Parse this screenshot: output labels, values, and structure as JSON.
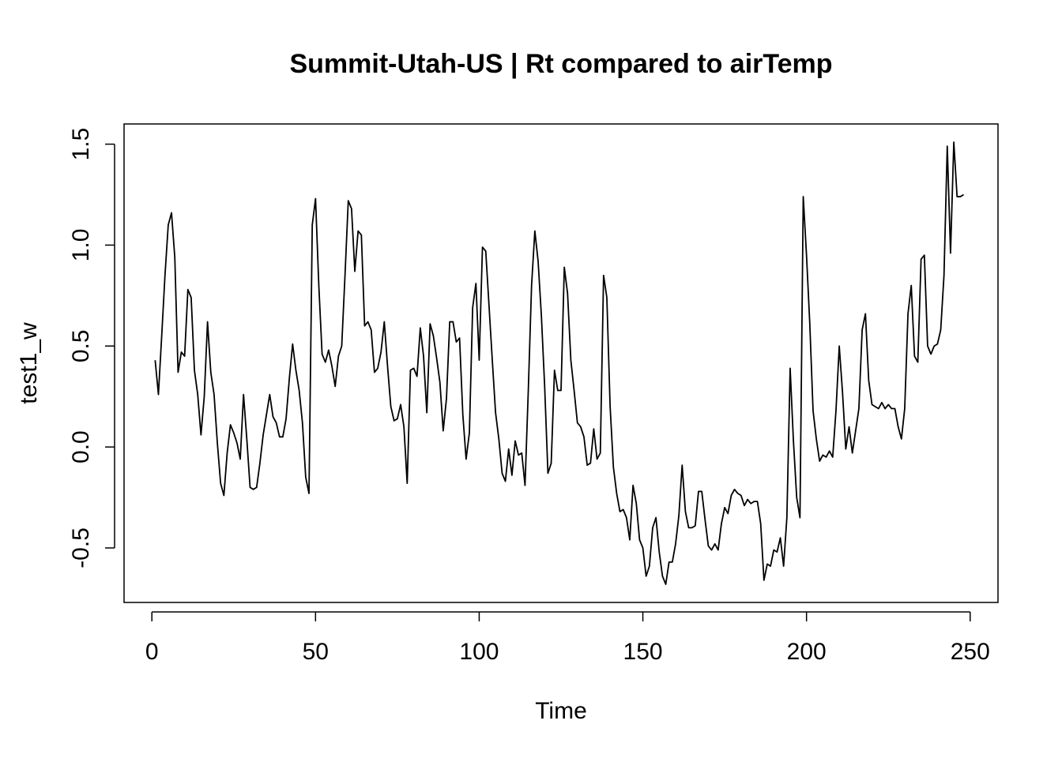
{
  "chart_data": {
    "type": "line",
    "title": "Summit-Utah-US | Rt compared to airTemp",
    "xlabel": "Time",
    "ylabel": "test1_w",
    "xlim": [
      -8.5,
      258.5
    ],
    "ylim": [
      -0.77,
      1.6
    ],
    "x_ticks": [
      0,
      50,
      100,
      150,
      200,
      250
    ],
    "x_tick_labels": [
      "0",
      "50",
      "100",
      "150",
      "200",
      "250"
    ],
    "y_ticks": [
      -0.5,
      0.0,
      0.5,
      1.0,
      1.5
    ],
    "y_tick_labels": [
      "-0.5",
      "0.0",
      "0.5",
      "1.0",
      "1.5"
    ],
    "grid": false,
    "line_color": "#000000",
    "series": [
      {
        "x_start": 1,
        "values": [
          0.43,
          0.26,
          0.55,
          0.85,
          1.1,
          1.16,
          0.94,
          0.37,
          0.47,
          0.45,
          0.78,
          0.74,
          0.38,
          0.26,
          0.06,
          0.25,
          0.62,
          0.37,
          0.26,
          0.02,
          -0.18,
          -0.24,
          -0.03,
          0.11,
          0.07,
          0.02,
          -0.06,
          0.26,
          0.04,
          -0.2,
          -0.21,
          -0.2,
          -0.08,
          0.06,
          0.16,
          0.26,
          0.15,
          0.12,
          0.05,
          0.05,
          0.14,
          0.34,
          0.51,
          0.38,
          0.28,
          0.12,
          -0.15,
          -0.23,
          1.1,
          1.23,
          0.8,
          0.46,
          0.42,
          0.48,
          0.4,
          0.3,
          0.45,
          0.5,
          0.85,
          1.22,
          1.18,
          0.87,
          1.07,
          1.05,
          0.6,
          0.62,
          0.58,
          0.37,
          0.39,
          0.47,
          0.62,
          0.4,
          0.2,
          0.13,
          0.14,
          0.21,
          0.1,
          -0.18,
          0.38,
          0.39,
          0.35,
          0.59,
          0.45,
          0.17,
          0.61,
          0.55,
          0.44,
          0.32,
          0.08,
          0.24,
          0.62,
          0.62,
          0.52,
          0.54,
          0.16,
          -0.06,
          0.07,
          0.69,
          0.81,
          0.43,
          0.99,
          0.97,
          0.7,
          0.43,
          0.17,
          0.04,
          -0.13,
          -0.17,
          -0.01,
          -0.14,
          0.03,
          -0.04,
          -0.03,
          -0.19,
          0.28,
          0.8,
          1.07,
          0.92,
          0.65,
          0.3,
          -0.13,
          -0.08,
          0.38,
          0.28,
          0.28,
          0.89,
          0.76,
          0.43,
          0.28,
          0.12,
          0.1,
          0.05,
          -0.09,
          -0.08,
          0.09,
          -0.06,
          -0.03,
          0.85,
          0.74,
          0.2,
          -0.1,
          -0.23,
          -0.32,
          -0.31,
          -0.35,
          -0.46,
          -0.19,
          -0.28,
          -0.46,
          -0.5,
          -0.64,
          -0.59,
          -0.4,
          -0.35,
          -0.52,
          -0.64,
          -0.68,
          -0.57,
          -0.57,
          -0.48,
          -0.34,
          -0.09,
          -0.32,
          -0.4,
          -0.4,
          -0.39,
          -0.22,
          -0.22,
          -0.36,
          -0.49,
          -0.51,
          -0.48,
          -0.51,
          -0.38,
          -0.3,
          -0.33,
          -0.24,
          -0.21,
          -0.23,
          -0.24,
          -0.29,
          -0.26,
          -0.28,
          -0.27,
          -0.27,
          -0.38,
          -0.66,
          -0.58,
          -0.59,
          -0.51,
          -0.52,
          -0.45,
          -0.59,
          -0.35,
          0.39,
          0.03,
          -0.25,
          -0.35,
          1.24,
          0.95,
          0.61,
          0.18,
          0.04,
          -0.07,
          -0.04,
          -0.05,
          -0.02,
          -0.05,
          0.18,
          0.5,
          0.27,
          -0.01,
          0.1,
          -0.03,
          0.08,
          0.19,
          0.58,
          0.66,
          0.33,
          0.21,
          0.2,
          0.19,
          0.22,
          0.19,
          0.21,
          0.19,
          0.19,
          0.1,
          0.04,
          0.19,
          0.66,
          0.8,
          0.45,
          0.42,
          0.93,
          0.95,
          0.5,
          0.46,
          0.5,
          0.51,
          0.58,
          0.85,
          1.49,
          0.96,
          1.51,
          1.24,
          1.24,
          1.25
        ]
      }
    ]
  }
}
